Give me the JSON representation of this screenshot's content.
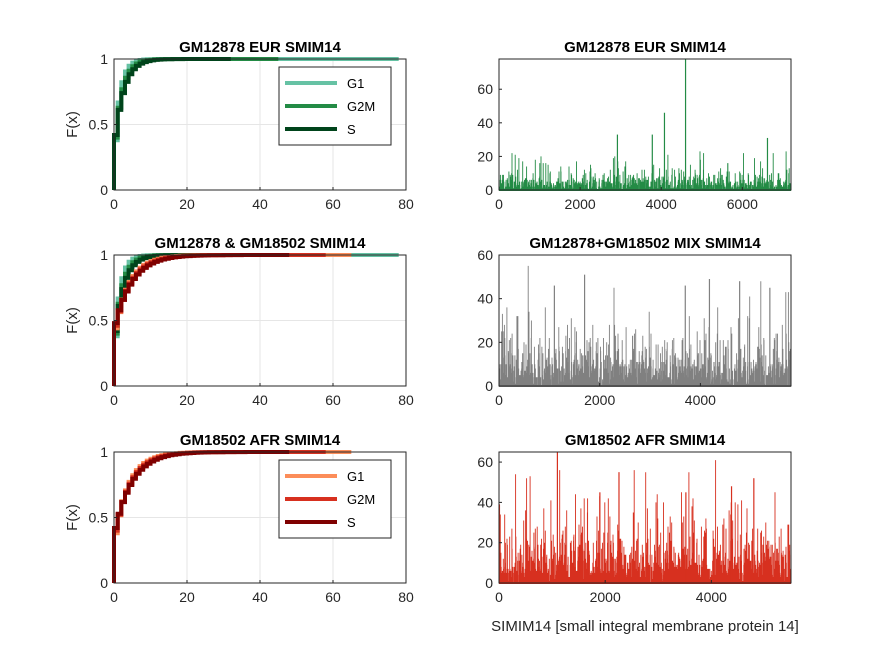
{
  "figure_xlabel": "SIMIM14 [small integral membrane protein 14]",
  "chart_data": [
    {
      "id": "p1",
      "type": "line",
      "kind": "ecdf",
      "title": "GM12878 EUR SMIM14",
      "xlabel": "",
      "ylabel": "F(x)",
      "xlim": [
        0,
        80
      ],
      "ylim": [
        0,
        1
      ],
      "xticks": [
        "0",
        "20",
        "40",
        "60",
        "80"
      ],
      "yticks": [
        "0",
        "0.5",
        "1"
      ],
      "grid": true,
      "legend": "top-right",
      "series": [
        {
          "name": "G1",
          "color": "#66c2a4",
          "width": 4,
          "max": 78,
          "scale": 1.6
        },
        {
          "name": "G2M",
          "color": "#238b45",
          "width": 4,
          "max": 45,
          "scale": 2.1
        },
        {
          "name": "S",
          "color": "#00441b",
          "width": 4,
          "max": 32,
          "scale": 2.5
        }
      ]
    },
    {
      "id": "p2",
      "type": "bar",
      "kind": "counts",
      "title": "GM12878 EUR SMIM14",
      "xlim": [
        0,
        7200
      ],
      "ylim": [
        0,
        78
      ],
      "xticks": [
        "0",
        "2000",
        "4000",
        "6000"
      ],
      "yticks": [
        "0",
        "20",
        "40",
        "60"
      ],
      "color": "#238b45",
      "n": 7200,
      "base": 4,
      "spikes": [
        [
          4600,
          78
        ],
        [
          4080,
          46
        ],
        [
          2920,
          33
        ],
        [
          3780,
          33
        ],
        [
          6620,
          31
        ]
      ]
    },
    {
      "id": "p3",
      "type": "line",
      "kind": "ecdf",
      "title": "GM12878 & GM18502 SMIM14",
      "xlabel": "",
      "ylabel": "F(x)",
      "xlim": [
        0,
        80
      ],
      "ylim": [
        0,
        1
      ],
      "xticks": [
        "0",
        "20",
        "40",
        "60",
        "80"
      ],
      "yticks": [
        "0",
        "0.5",
        "1"
      ],
      "grid": true,
      "legend": "none",
      "series": [
        {
          "name": "",
          "color": "#66c2a4",
          "width": 4,
          "max": 78,
          "scale": 1.6
        },
        {
          "name": "",
          "color": "#238b45",
          "width": 4,
          "max": 45,
          "scale": 2.1
        },
        {
          "name": "",
          "color": "#00441b",
          "width": 4,
          "max": 32,
          "scale": 2.5
        },
        {
          "name": "",
          "color": "#fc8d59",
          "width": 4,
          "max": 65,
          "scale": 4.0
        },
        {
          "name": "",
          "color": "#d7301f",
          "width": 4,
          "max": 58,
          "scale": 4.4
        },
        {
          "name": "",
          "color": "#7f0000",
          "width": 4,
          "max": 48,
          "scale": 4.8
        }
      ]
    },
    {
      "id": "p4",
      "type": "bar",
      "kind": "counts",
      "title": "GM12878+GM18502 MIX SMIM14",
      "xlim": [
        0,
        5800
      ],
      "ylim": [
        0,
        60
      ],
      "xticks": [
        "0",
        "2000",
        "4000"
      ],
      "yticks": [
        "0",
        "20",
        "40",
        "60"
      ],
      "color": "#808080",
      "n": 5800,
      "base": 8,
      "spikes": [
        [
          1700,
          51
        ],
        [
          4180,
          49
        ],
        [
          4780,
          48
        ],
        [
          1100,
          46
        ],
        [
          3700,
          46
        ],
        [
          5380,
          45
        ]
      ]
    },
    {
      "id": "p5",
      "type": "line",
      "kind": "ecdf",
      "title": "GM18502 AFR SMIM14",
      "xlabel": "",
      "ylabel": "F(x)",
      "xlim": [
        0,
        80
      ],
      "ylim": [
        0,
        1
      ],
      "xticks": [
        "0",
        "20",
        "40",
        "60",
        "80"
      ],
      "yticks": [
        "0",
        "0.5",
        "1"
      ],
      "grid": true,
      "legend": "top-right",
      "series": [
        {
          "name": "G1",
          "color": "#fc8d59",
          "width": 4,
          "max": 65,
          "scale": 4.0
        },
        {
          "name": "G2M",
          "color": "#d7301f",
          "width": 4,
          "max": 58,
          "scale": 4.4
        },
        {
          "name": "S",
          "color": "#7f0000",
          "width": 4,
          "max": 48,
          "scale": 4.8
        }
      ]
    },
    {
      "id": "p6",
      "type": "bar",
      "kind": "counts",
      "title": "GM18502 AFR SMIM14",
      "xlim": [
        0,
        5500
      ],
      "ylim": [
        0,
        65
      ],
      "xticks": [
        "0",
        "2000",
        "4000"
      ],
      "yticks": [
        "0",
        "20",
        "40",
        "60"
      ],
      "color": "#d7301f",
      "n": 5500,
      "base": 9,
      "spikes": [
        [
          1100,
          65
        ],
        [
          2260,
          55
        ],
        [
          4800,
          52
        ],
        [
          4380,
          48
        ],
        [
          1900,
          45
        ],
        [
          3520,
          45
        ]
      ]
    }
  ]
}
